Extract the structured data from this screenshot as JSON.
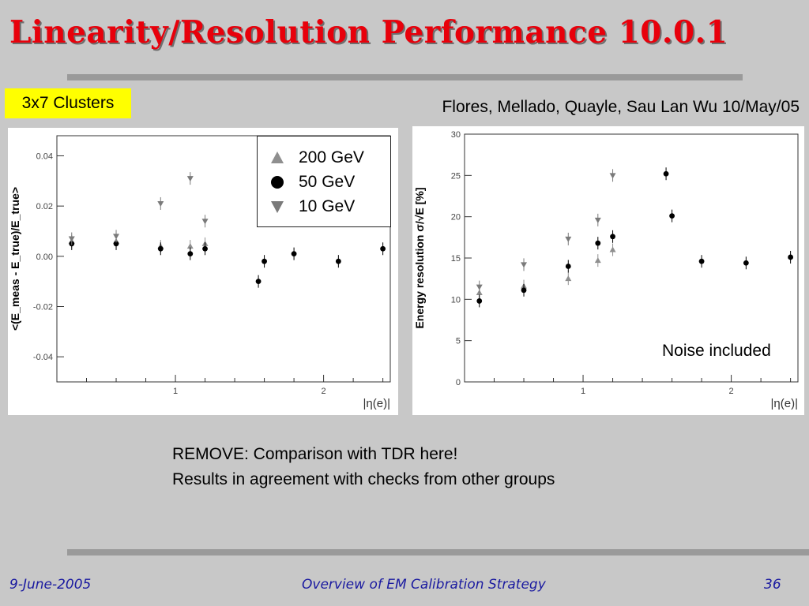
{
  "slide": {
    "title": "Linearity/Resolution Performance 10.0.1",
    "badge": "3x7 Clusters",
    "authors": "Flores, Mellado, Quayle, Sau Lan Wu 10/May/05",
    "noise_note": "Noise included",
    "notes": [
      "REMOVE: Comparison with TDR here!",
      "Results in agreement with checks from other groups"
    ],
    "footer": {
      "date": "9-June-2005",
      "center": "Overview of EM Calibration Strategy",
      "page": "36"
    }
  },
  "colors": {
    "title": "#e8000b",
    "badge": "#ffff00",
    "footer": "#1a1aa0",
    "marker_200": "#8f8f8f",
    "marker_50": "#000000",
    "marker_10": "#7a7a7a"
  },
  "legend": [
    {
      "label": "200 GeV",
      "marker": "triangle-up"
    },
    {
      "label": "50 GeV",
      "marker": "circle"
    },
    {
      "label": "10 GeV",
      "marker": "triangle-down"
    }
  ],
  "chart_data": [
    {
      "type": "scatter",
      "xlabel": "|η(e)|",
      "ylabel": "<(E_meas - E_true)/E_true>",
      "xlim": [
        0.2,
        2.45
      ],
      "ylim": [
        -0.05,
        0.048
      ],
      "xticks": [
        {
          "v": 1,
          "label": "1"
        },
        {
          "v": 2,
          "label": "2"
        }
      ],
      "yticks": [
        {
          "v": 0.04,
          "label": "0.04"
        },
        {
          "v": 0.02,
          "label": "0.02"
        },
        {
          "v": 0.0,
          "label": "0.00"
        },
        {
          "v": -0.02,
          "label": "-0.02"
        },
        {
          "v": -0.04,
          "label": "-0.04"
        }
      ],
      "series": [
        {
          "name": "200 GeV",
          "marker": "triangle-up",
          "x": [
            0.3,
            0.6,
            0.9,
            1.1,
            1.2
          ],
          "y": [
            0.006,
            0.006,
            0.004,
            0.004,
            0.005
          ]
        },
        {
          "name": "50 GeV",
          "marker": "circle",
          "x": [
            0.3,
            0.6,
            0.9,
            1.1,
            1.2,
            1.56,
            1.6,
            1.8,
            2.1,
            2.4
          ],
          "y": [
            0.005,
            0.005,
            0.003,
            0.001,
            0.003,
            -0.01,
            -0.002,
            0.001,
            -0.002,
            0.003
          ]
        },
        {
          "name": "10 GeV",
          "marker": "triangle-down",
          "x": [
            0.3,
            0.6,
            0.9,
            1.1,
            1.2
          ],
          "y": [
            0.007,
            0.008,
            0.021,
            0.031,
            0.014
          ]
        }
      ]
    },
    {
      "type": "scatter",
      "xlabel": "|η(e)|",
      "ylabel": "Energy resolution σ/√E [%]",
      "xlim": [
        0.2,
        2.45
      ],
      "ylim": [
        0,
        30
      ],
      "xticks": [
        {
          "v": 1,
          "label": "1"
        },
        {
          "v": 2,
          "label": "2"
        }
      ],
      "yticks": [
        {
          "v": 0,
          "label": "0"
        },
        {
          "v": 5,
          "label": "5"
        },
        {
          "v": 10,
          "label": "10"
        },
        {
          "v": 15,
          "label": "15"
        },
        {
          "v": 20,
          "label": "20"
        },
        {
          "v": 25,
          "label": "25"
        },
        {
          "v": 30,
          "label": "30"
        }
      ],
      "series": [
        {
          "name": "200 GeV",
          "marker": "triangle-up",
          "x": [
            0.3,
            0.6,
            0.9,
            1.1,
            1.2
          ],
          "y": [
            10.8,
            11.6,
            12.5,
            14.7,
            16.0
          ]
        },
        {
          "name": "50 GeV",
          "marker": "circle",
          "x": [
            0.3,
            0.6,
            0.9,
            1.1,
            1.2,
            1.56,
            1.6,
            1.8,
            2.1,
            2.4
          ],
          "y": [
            9.8,
            11.1,
            14.0,
            16.8,
            17.6,
            25.2,
            20.1,
            14.6,
            14.4,
            15.1
          ]
        },
        {
          "name": "10 GeV",
          "marker": "triangle-down",
          "x": [
            0.3,
            0.6,
            0.9,
            1.1,
            1.2
          ],
          "y": [
            11.5,
            14.2,
            17.3,
            19.6,
            25.0
          ]
        }
      ]
    }
  ]
}
